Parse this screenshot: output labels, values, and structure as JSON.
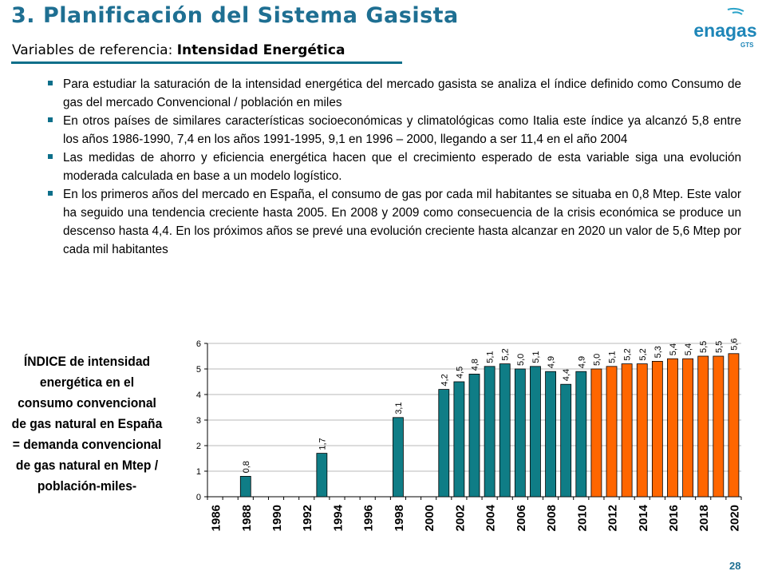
{
  "header": {
    "title": "3. Planificación del Sistema Gasista",
    "subtitle_prefix": "Variables de referencia:",
    "subtitle_bold": "Intensidad Energética"
  },
  "logo": {
    "text": "enagas",
    "subtext": "GTS",
    "icon": "enagas-logo"
  },
  "bullets": [
    "Para estudiar la saturación de la intensidad energética del mercado gasista se analiza el índice definido como Consumo de gas del mercado Convencional / población en miles",
    "En otros países de similares características socioeconómicas y climatológicas como Italia este índice ya alcanzó 5,8 entre los años 1986-1990,  7,4 en los años 1991-1995, 9,1 en 1996 – 2000, llegando a ser 11,4 en el año 2004",
    "Las medidas de ahorro y eficiencia energética hacen que el crecimiento esperado de esta variable siga una evolución moderada calculada en base a un modelo logístico.",
    "En los primeros años del mercado en España, el consumo de gas por cada mil habitantes se situaba en 0,8 Mtep. Este valor ha seguido una tendencia creciente hasta 2005. En 2008 y 2009 como consecuencia de la crisis económica se produce un descenso  hasta 4,4. En los próximos años se prevé una evolución creciente hasta alcanzar en 2020 un valor de 5,6 Mtep por cada mil habitantes"
  ],
  "side_label": "ÍNDICE de intensidad energética en el consumo convencional de gas natural en España = demanda convencional de gas natural en Mtep / población-miles-",
  "page_number": "28",
  "chart_data": {
    "type": "bar",
    "categories": [
      "1986",
      "1987",
      "1988",
      "1989",
      "1990",
      "1991",
      "1992",
      "1993",
      "1994",
      "1995",
      "1996",
      "1997",
      "1998",
      "1999",
      "2000",
      "2001",
      "2002",
      "2003",
      "2004",
      "2005",
      "2006",
      "2007",
      "2008",
      "2009",
      "2010",
      "2011",
      "2012",
      "2013",
      "2014",
      "2015",
      "2016",
      "2017",
      "2018",
      "2019",
      "2020"
    ],
    "series": [
      {
        "color": "#0f7d86",
        "values": [
          null,
          null,
          0.8,
          null,
          null,
          null,
          null,
          1.7,
          null,
          null,
          null,
          null,
          3.1,
          null,
          null,
          4.2,
          4.5,
          4.8,
          5.1,
          5.2,
          5.0,
          5.1,
          4.9,
          4.4,
          4.9,
          null,
          null,
          null,
          null,
          null,
          null,
          null,
          null,
          null,
          null
        ]
      },
      {
        "color": "#ff6600",
        "values": [
          null,
          null,
          null,
          null,
          null,
          null,
          null,
          null,
          null,
          null,
          null,
          null,
          null,
          null,
          null,
          null,
          null,
          null,
          null,
          null,
          null,
          null,
          null,
          null,
          null,
          5.0,
          5.1,
          5.2,
          5.2,
          5.3,
          5.4,
          5.4,
          5.5,
          5.5,
          5.6
        ]
      }
    ],
    "data_labels": [
      "",
      "",
      "0,8",
      "",
      "",
      "",
      "",
      "1,7",
      "",
      "",
      "",
      "",
      "3,1",
      "",
      "",
      "4,2",
      "4,5",
      "4,8",
      "5,1",
      "5,2",
      "5,0",
      "5,1",
      "4,9",
      "4,4",
      "4,9",
      "5,0",
      "5,1",
      "5,2",
      "5,2",
      "5,3",
      "5,4",
      "5,4",
      "5,5",
      "5,5",
      "5,6"
    ],
    "x_tick_labels": [
      "1986",
      "1988",
      "1990",
      "1992",
      "1994",
      "1996",
      "1998",
      "2000",
      "2002",
      "2004",
      "2006",
      "2008",
      "2010",
      "2012",
      "2014",
      "2016",
      "2018",
      "2020"
    ],
    "y_ticks": [
      "0",
      "1",
      "2",
      "3",
      "4",
      "5",
      "6"
    ],
    "ylim": [
      0,
      6
    ],
    "grid": true,
    "title": "",
    "xlabel": "",
    "ylabel": ""
  }
}
